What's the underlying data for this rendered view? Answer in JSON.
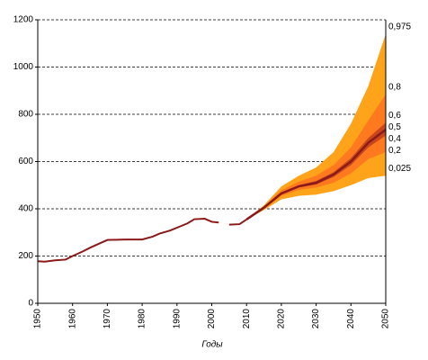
{
  "chart_data": {
    "type": "fan",
    "x_label": "Годы",
    "xlim": [
      1950,
      2050
    ],
    "xticks": [
      1950,
      1960,
      1970,
      1980,
      1990,
      2000,
      2010,
      2020,
      2030,
      2040,
      2050
    ],
    "ylim": [
      0,
      1200
    ],
    "yticks": [
      0,
      200,
      400,
      600,
      800,
      1000,
      1200
    ],
    "grid": true,
    "history": {
      "color": "#8b1a1a",
      "x": [
        1950,
        1952,
        1955,
        1958,
        1960,
        1963,
        1965,
        1968,
        1970,
        1975,
        1980,
        1983,
        1985,
        1988,
        1990,
        1993,
        1995,
        1998,
        2000,
        2002,
        2003,
        2005,
        2008,
        2010
      ],
      "values": [
        178,
        176,
        182,
        185,
        200,
        220,
        235,
        255,
        268,
        270,
        270,
        282,
        295,
        308,
        320,
        338,
        356,
        358,
        345,
        342,
        null,
        333,
        335,
        355
      ]
    },
    "projection_x": [
      2010,
      2015,
      2020,
      2025,
      2030,
      2035,
      2040,
      2045,
      2050
    ],
    "fan_colors": [
      "#ffa31a",
      "#ff7a1f",
      "#c8461c"
    ],
    "median_color": "#8b1a1a",
    "quantiles": [
      {
        "label": "0,975",
        "values": [
          355,
          415,
          495,
          540,
          575,
          640,
          760,
          920,
          1140
        ]
      },
      {
        "label": "0,8",
        "values": [
          355,
          410,
          478,
          515,
          540,
          585,
          660,
          775,
          885
        ]
      },
      {
        "label": "0,6",
        "values": [
          355,
          407,
          468,
          500,
          518,
          555,
          615,
          700,
          765
        ]
      },
      {
        "label": "0,5",
        "values": [
          355,
          405,
          465,
          495,
          510,
          545,
          600,
          680,
          735
        ]
      },
      {
        "label": "0,4",
        "values": [
          355,
          403,
          462,
          490,
          503,
          535,
          585,
          660,
          710
        ]
      },
      {
        "label": "0,2",
        "values": [
          355,
          400,
          455,
          480,
          490,
          510,
          550,
          610,
          640
        ]
      },
      {
        "label": "0,025",
        "values": [
          355,
          395,
          440,
          455,
          460,
          475,
          500,
          530,
          540
        ]
      }
    ]
  }
}
